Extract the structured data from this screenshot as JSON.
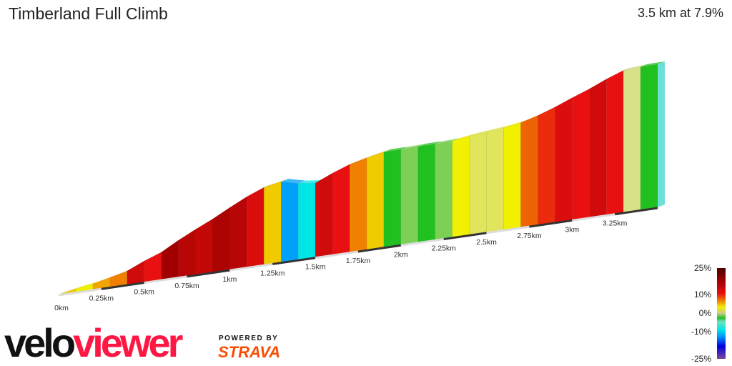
{
  "header": {
    "title": "Timberland Full Climb",
    "summary": "3.5 km at 7.9%"
  },
  "legend": {
    "labels": [
      "25%",
      "10%",
      "0%",
      "-10%",
      "-25%"
    ]
  },
  "branding": {
    "logo_part1": "velo",
    "logo_part2": "viewer",
    "powered_by": "POWERED BY",
    "strava": "STRAVA"
  },
  "chart_data": {
    "type": "area",
    "title": "Timberland Full Climb",
    "xlabel": "",
    "ylabel": "",
    "x_unit": "km",
    "xlim": [
      0,
      3.5
    ],
    "tick_labels": [
      "0km",
      "0.25km",
      "0.5km",
      "0.75km",
      "1km",
      "1.25km",
      "1.5km",
      "1.75km",
      "2km",
      "2.25km",
      "2.5km",
      "2.75km",
      "3km",
      "3.25km"
    ],
    "segment_length_km": 0.1,
    "gradients_percent": [
      6,
      5,
      7,
      8,
      14,
      12,
      18,
      16,
      15,
      17,
      16,
      13,
      6,
      -8,
      -4,
      14,
      12,
      8,
      6,
      0,
      1,
      0,
      1,
      5,
      3,
      3,
      5,
      9,
      11,
      13,
      12,
      14,
      12,
      2,
      0
    ],
    "color_scale": {
      "min": -25,
      "max": 25,
      "stops": [
        {
          "v": -25,
          "c": "#7a4a98"
        },
        {
          "v": -15,
          "c": "#0000e0"
        },
        {
          "v": -9,
          "c": "#0090ff"
        },
        {
          "v": -4,
          "c": "#00e5e5"
        },
        {
          "v": -1,
          "c": "#70e0c0"
        },
        {
          "v": 0,
          "c": "#20c020"
        },
        {
          "v": 2,
          "c": "#d8e08a"
        },
        {
          "v": 5,
          "c": "#f0f000"
        },
        {
          "v": 8,
          "c": "#f08000"
        },
        {
          "v": 12,
          "c": "#e81010"
        },
        {
          "v": 18,
          "c": "#a00000"
        },
        {
          "v": 25,
          "c": "#4a0000"
        }
      ]
    }
  }
}
